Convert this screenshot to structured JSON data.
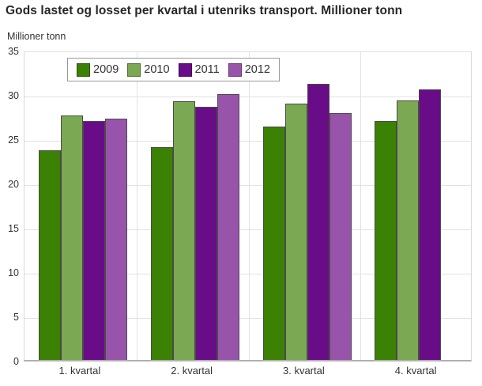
{
  "chart_data": {
    "type": "bar",
    "title": "Gods lastet og losset per kvartal i utenriks transport. Millioner tonn",
    "ylabel": "Millioner tonn",
    "xlabel": "",
    "categories": [
      "1. kvartal",
      "2. kvartal",
      "3. kvartal",
      "4. kvartal"
    ],
    "series": [
      {
        "name": "2009",
        "color": "#3b8104",
        "values": [
          23.7,
          24.0,
          26.3,
          27.0
        ]
      },
      {
        "name": "2010",
        "color": "#7ba853",
        "values": [
          27.6,
          29.2,
          28.9,
          29.3
        ]
      },
      {
        "name": "2011",
        "color": "#690c87",
        "values": [
          27.0,
          28.6,
          31.2,
          30.5
        ]
      },
      {
        "name": "2012",
        "color": "#9854ab",
        "values": [
          27.2,
          30.0,
          27.9,
          null
        ]
      }
    ],
    "ylim": [
      0,
      35
    ],
    "ytick_step": 5,
    "ytick_labels": [
      "0",
      "5",
      "10",
      "15",
      "20",
      "25",
      "30",
      "35"
    ],
    "grid": "horizontal and vertical light gray gridlines",
    "legend_position": "top-left inside plot, horizontal, boxed"
  },
  "colors": {
    "background": "#ffffff",
    "grid": "#e2e2e2",
    "axis_line": "#b0b0b0",
    "text": "#333333",
    "title_text": "#262626",
    "bar_border": "#4a4a4a",
    "legend_border": "#999999"
  }
}
